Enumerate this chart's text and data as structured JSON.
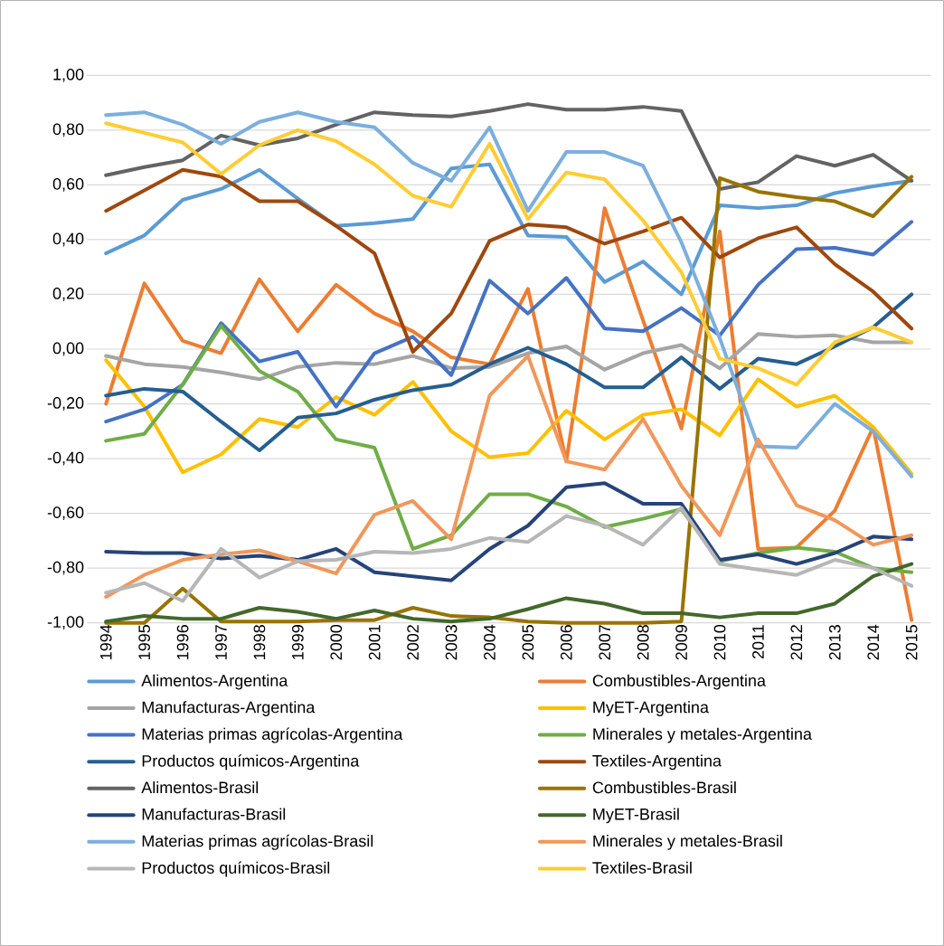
{
  "chart_data": {
    "type": "line",
    "categories": [
      "1994",
      "1995",
      "1996",
      "1997",
      "1998",
      "1999",
      "2000",
      "2001",
      "2002",
      "2003",
      "2004",
      "2005",
      "2006",
      "2007",
      "2008",
      "2009",
      "2010",
      "2011",
      "2012",
      "2013",
      "2014",
      "2015"
    ],
    "series": [
      {
        "name": "Alimentos-Argentina",
        "color": "#5b9bd5",
        "values": [
          0.35,
          0.415,
          0.545,
          0.585,
          0.655,
          0.55,
          0.45,
          0.46,
          0.475,
          0.66,
          0.675,
          0.415,
          0.41,
          0.245,
          0.32,
          0.2,
          0.525,
          0.515,
          0.525,
          0.57,
          0.595,
          0.615
        ]
      },
      {
        "name": "Combustibles-Argentina",
        "color": "#ed7d31",
        "values": [
          -0.2,
          0.24,
          0.03,
          -0.015,
          0.255,
          0.065,
          0.235,
          0.13,
          0.065,
          -0.03,
          -0.055,
          0.22,
          -0.41,
          0.515,
          0.105,
          -0.29,
          0.43,
          -0.73,
          -0.725,
          -0.59,
          -0.285,
          -0.99
        ]
      },
      {
        "name": "Manufacturas-Argentina",
        "color": "#a5a5a5",
        "values": [
          -0.025,
          -0.055,
          -0.065,
          -0.085,
          -0.11,
          -0.065,
          -0.05,
          -0.055,
          -0.025,
          -0.07,
          -0.065,
          -0.015,
          0.01,
          -0.075,
          -0.015,
          0.015,
          -0.07,
          0.055,
          0.045,
          0.05,
          0.025,
          0.025
        ]
      },
      {
        "name": "MyET-Argentina",
        "color": "#ffc000",
        "values": [
          -0.04,
          -0.21,
          -0.45,
          -0.385,
          -0.255,
          -0.285,
          -0.175,
          -0.24,
          -0.12,
          -0.3,
          -0.395,
          -0.38,
          -0.225,
          -0.33,
          -0.24,
          -0.22,
          -0.315,
          -0.11,
          -0.21,
          -0.17,
          -0.285,
          -0.455
        ]
      },
      {
        "name": "Materias primas agrícolas-Argentina",
        "color": "#4472c4",
        "values": [
          -0.265,
          -0.22,
          -0.13,
          0.095,
          -0.045,
          -0.01,
          -0.21,
          -0.015,
          0.045,
          -0.095,
          0.25,
          0.13,
          0.26,
          0.075,
          0.065,
          0.15,
          0.05,
          0.235,
          0.365,
          0.37,
          0.345,
          0.465
        ]
      },
      {
        "name": "Minerales y metales-Argentina",
        "color": "#70ad47",
        "values": [
          -0.335,
          -0.31,
          -0.13,
          0.085,
          -0.08,
          -0.155,
          -0.33,
          -0.36,
          -0.73,
          -0.68,
          -0.53,
          -0.53,
          -0.575,
          -0.65,
          -0.62,
          -0.585,
          -0.775,
          -0.745,
          -0.725,
          -0.74,
          -0.8,
          -0.815
        ]
      },
      {
        "name": "Productos químicos-Argentina",
        "color": "#255e91",
        "values": [
          -0.17,
          -0.145,
          -0.155,
          -0.265,
          -0.37,
          -0.25,
          -0.235,
          -0.185,
          -0.15,
          -0.13,
          -0.055,
          0.005,
          -0.055,
          -0.14,
          -0.14,
          -0.03,
          -0.145,
          -0.035,
          -0.055,
          0.01,
          0.08,
          0.2
        ]
      },
      {
        "name": "Textiles-Argentina",
        "color": "#9e480e",
        "values": [
          0.505,
          0.58,
          0.655,
          0.63,
          0.54,
          0.54,
          0.45,
          0.35,
          -0.01,
          0.13,
          0.395,
          0.455,
          0.445,
          0.385,
          0.43,
          0.48,
          0.335,
          0.405,
          0.445,
          0.31,
          0.21,
          0.075
        ]
      },
      {
        "name": "Alimentos-Brasil",
        "color": "#636363",
        "values": [
          0.635,
          0.665,
          0.69,
          0.78,
          0.745,
          0.77,
          0.82,
          0.865,
          0.855,
          0.85,
          0.87,
          0.895,
          0.875,
          0.875,
          0.885,
          0.87,
          0.585,
          0.61,
          0.705,
          0.67,
          0.71,
          0.615
        ]
      },
      {
        "name": "Combustibles-Brasil",
        "color": "#997300",
        "values": [
          -1.0,
          -1.0,
          -0.875,
          -0.995,
          -0.995,
          -0.995,
          -0.99,
          -0.99,
          -0.945,
          -0.975,
          -0.98,
          -0.995,
          -1.0,
          -1.0,
          -1.0,
          -0.995,
          0.625,
          0.575,
          0.555,
          0.54,
          0.485,
          0.63
        ]
      },
      {
        "name": "Manufacturas-Brasil",
        "color": "#264478",
        "values": [
          -0.74,
          -0.745,
          -0.745,
          -0.765,
          -0.755,
          -0.77,
          -0.73,
          -0.815,
          -0.83,
          -0.845,
          -0.73,
          -0.645,
          -0.505,
          -0.49,
          -0.565,
          -0.565,
          -0.77,
          -0.75,
          -0.785,
          -0.745,
          -0.685,
          -0.695
        ]
      },
      {
        "name": "MyET-Brasil",
        "color": "#43682b",
        "values": [
          -0.995,
          -0.975,
          -0.985,
          -0.985,
          -0.945,
          -0.96,
          -0.985,
          -0.955,
          -0.985,
          -0.995,
          -0.985,
          -0.95,
          -0.91,
          -0.93,
          -0.965,
          -0.965,
          -0.98,
          -0.965,
          -0.965,
          -0.93,
          -0.83,
          -0.785
        ]
      },
      {
        "name": "Materias primas agrícolas-Brasil",
        "color": "#7cafdd",
        "values": [
          0.855,
          0.865,
          0.82,
          0.75,
          0.83,
          0.865,
          0.83,
          0.81,
          0.68,
          0.615,
          0.81,
          0.505,
          0.72,
          0.72,
          0.67,
          0.39,
          0.04,
          -0.355,
          -0.36,
          -0.2,
          -0.3,
          -0.465
        ]
      },
      {
        "name": "Minerales y metales-Brasil",
        "color": "#f1975a",
        "values": [
          -0.905,
          -0.825,
          -0.77,
          -0.75,
          -0.735,
          -0.775,
          -0.82,
          -0.605,
          -0.555,
          -0.695,
          -0.17,
          -0.025,
          -0.41,
          -0.44,
          -0.255,
          -0.5,
          -0.68,
          -0.33,
          -0.57,
          -0.625,
          -0.715,
          -0.68
        ]
      },
      {
        "name": "Productos químicos-Brasil",
        "color": "#b7b7b7",
        "values": [
          -0.89,
          -0.855,
          -0.92,
          -0.73,
          -0.835,
          -0.775,
          -0.77,
          -0.74,
          -0.745,
          -0.73,
          -0.69,
          -0.705,
          -0.61,
          -0.645,
          -0.715,
          -0.58,
          -0.785,
          -0.805,
          -0.825,
          -0.77,
          -0.8,
          -0.865
        ]
      },
      {
        "name": "Textiles-Brasil",
        "color": "#ffcd33",
        "values": [
          0.825,
          0.79,
          0.755,
          0.64,
          0.745,
          0.8,
          0.76,
          0.675,
          0.56,
          0.52,
          0.75,
          0.475,
          0.645,
          0.62,
          0.47,
          0.28,
          -0.035,
          -0.07,
          -0.13,
          0.025,
          0.08,
          0.025
        ]
      }
    ],
    "ylim": [
      -1,
      1
    ],
    "yticks": [
      {
        "value": -1,
        "label": "-1,00"
      },
      {
        "value": -0.8,
        "label": "-0,80"
      },
      {
        "value": -0.6,
        "label": "-0,60"
      },
      {
        "value": -0.4,
        "label": "-0,40"
      },
      {
        "value": -0.2,
        "label": "-0,20"
      },
      {
        "value": 0,
        "label": "0,00"
      },
      {
        "value": 0.2,
        "label": "0,20"
      },
      {
        "value": 0.4,
        "label": "0,40"
      },
      {
        "value": 0.6,
        "label": "0,60"
      },
      {
        "value": 0.8,
        "label": "0,80"
      },
      {
        "value": 1,
        "label": "1,00"
      }
    ],
    "grid": "y",
    "legend": "bottom",
    "marker": "none",
    "line_style": "solid"
  }
}
